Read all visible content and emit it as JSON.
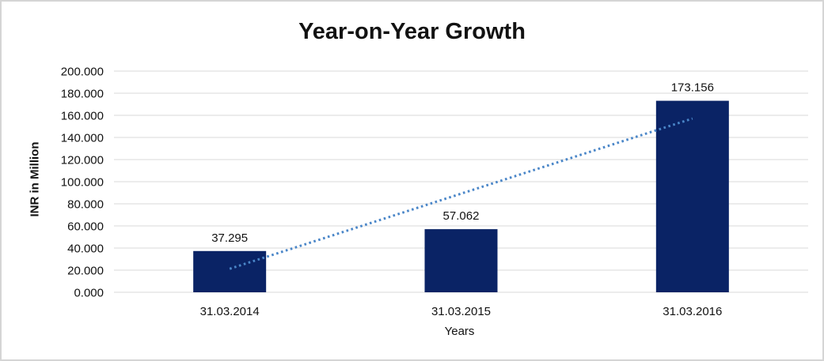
{
  "frame": {
    "background": "#FFFFFF",
    "border_color": "#D5D5D5"
  },
  "chart_data": {
    "type": "bar",
    "title": "Year-on-Year Growth",
    "categories": [
      "31.03.2014",
      "31.03.2015",
      "31.03.2016"
    ],
    "values": [
      37.295,
      57.062,
      173.156
    ],
    "data_labels": [
      "37.295",
      "57.062",
      "173.156"
    ],
    "xlabel": "Years",
    "ylabel": "INR in Million",
    "ylim": [
      0,
      200
    ],
    "ytick_step": 20,
    "ytick_labels": [
      "0.000",
      "20.000",
      "40.000",
      "60.000",
      "80.000",
      "100.000",
      "120.000",
      "140.000",
      "160.000",
      "180.000",
      "200.000"
    ],
    "grid": true,
    "legend": "none",
    "trendline": {
      "type": "linear",
      "style": "dotted",
      "color": "#4A86C8"
    },
    "colors": {
      "bar": "#0A2365",
      "gridline": "#D9D9D9",
      "text": "#121212",
      "title": "#121212"
    }
  }
}
